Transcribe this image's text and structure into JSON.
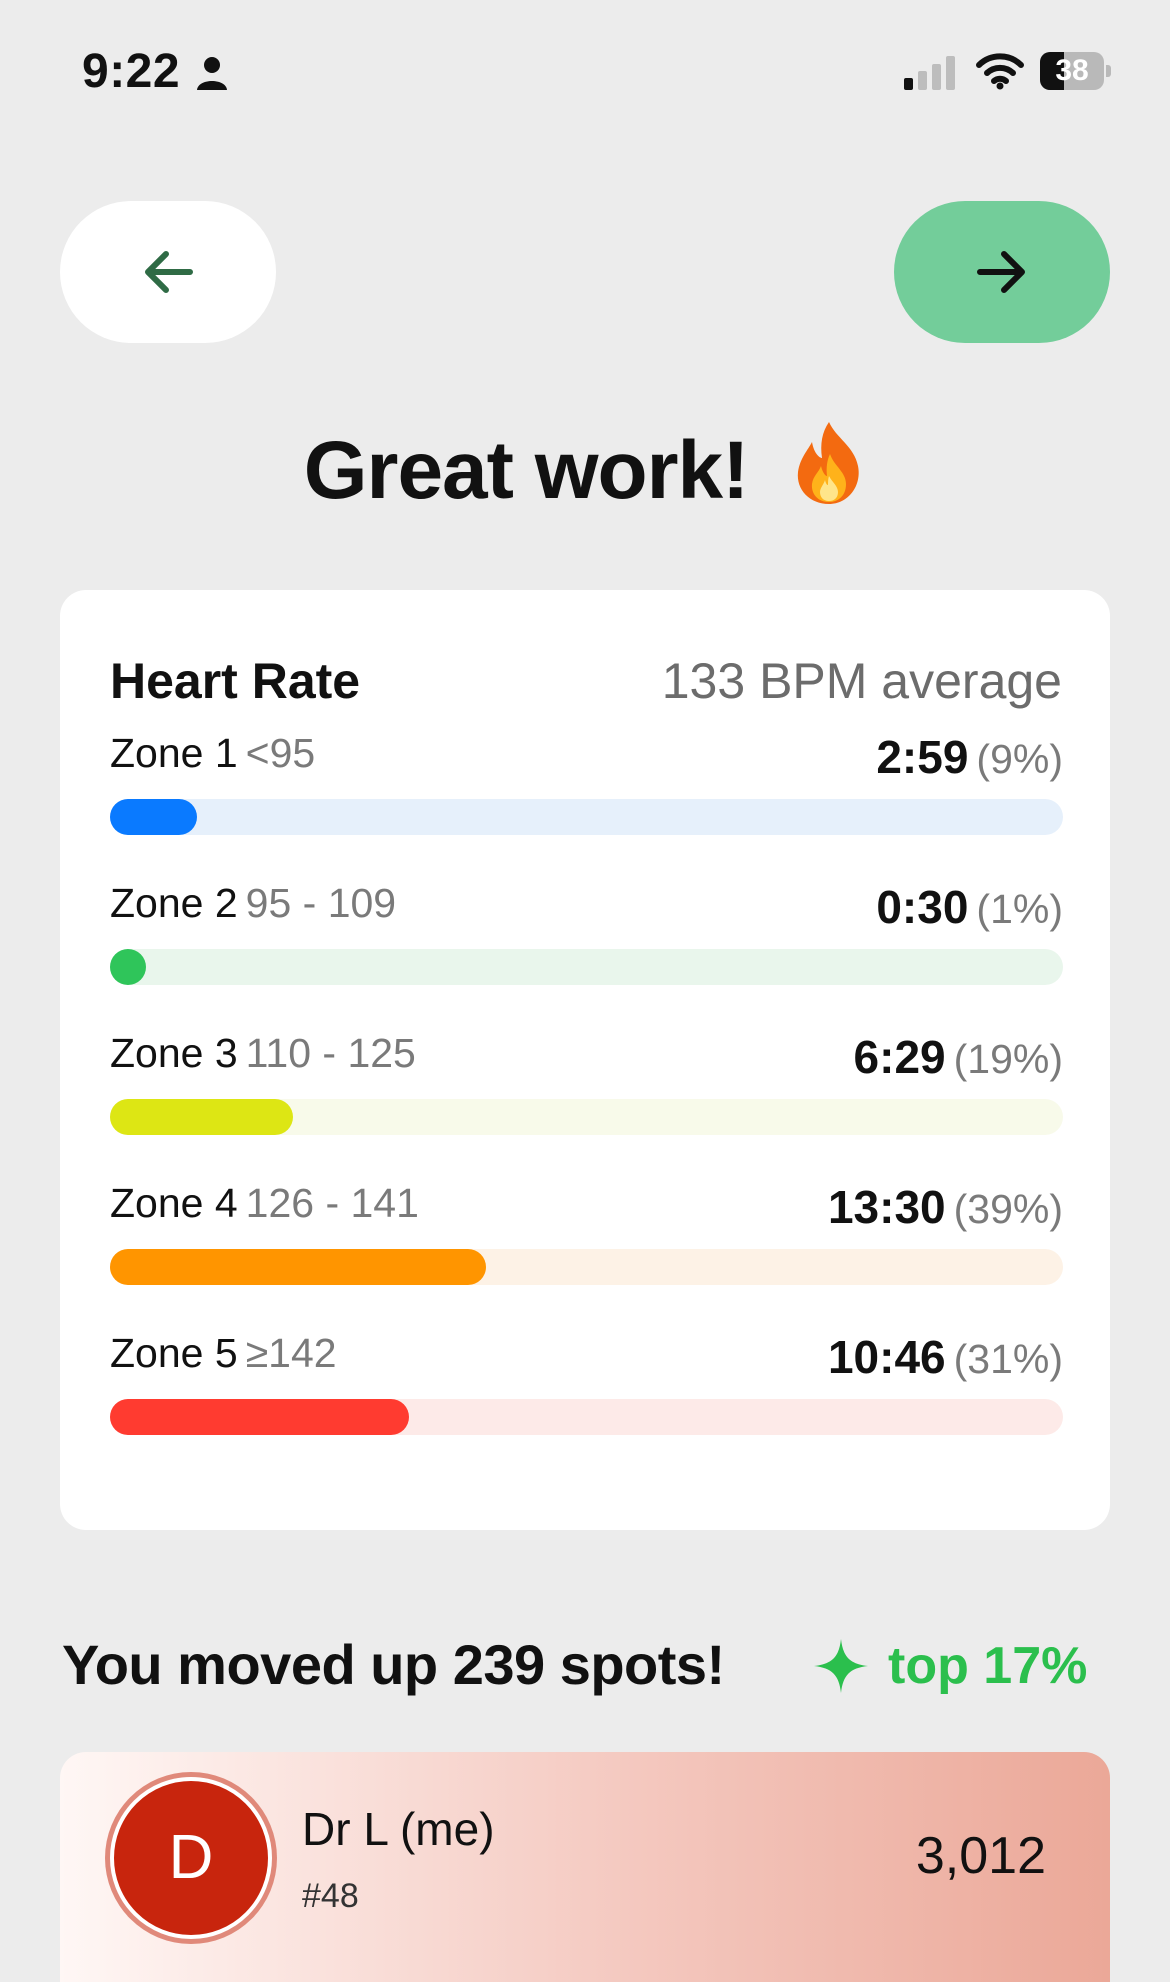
{
  "status_bar": {
    "time": "9:22",
    "battery": "38",
    "icons": [
      "person-icon",
      "signal-icon",
      "wifi-icon",
      "battery-icon"
    ]
  },
  "nav": {
    "back_icon": "arrow-left-icon",
    "next_icon": "arrow-right-icon",
    "back_bg": "#ffffff",
    "next_bg": "#73cd9a"
  },
  "headline": {
    "text": "Great work!",
    "emoji_icon": "fire-icon"
  },
  "heart_rate": {
    "title": "Heart Rate",
    "average": "133 BPM average",
    "zones": [
      {
        "name": "Zone 1",
        "range": "<95",
        "time": "2:59",
        "pct": "(9%)",
        "fraction": 0.09,
        "color": "#0a7aff",
        "track_color": "#e6f0fb"
      },
      {
        "name": "Zone 2",
        "range": "95 - 109",
        "time": "0:30",
        "pct": "(1%)",
        "fraction": 0.01,
        "color": "#2fc55a",
        "track_color": "#e9f6ec"
      },
      {
        "name": "Zone 3",
        "range": "110 - 125",
        "time": "6:29",
        "pct": "(19%)",
        "fraction": 0.19,
        "color": "#dde614",
        "track_color": "#f8faea"
      },
      {
        "name": "Zone 4",
        "range": "126 - 141",
        "time": "13:30",
        "pct": "(39%)",
        "fraction": 0.39,
        "color": "#ff9500",
        "track_color": "#fdf2e6"
      },
      {
        "name": "Zone 5",
        "range": "≥142",
        "time": "10:46",
        "pct": "(31%)",
        "fraction": 0.31,
        "color": "#ff3b30",
        "track_color": "#fdeae8"
      }
    ]
  },
  "rank": {
    "heading": "You moved up 239 spots!",
    "badge_icon": "sparkle-icon",
    "badge": "top 17%",
    "badge_color": "#2bbf4d"
  },
  "leaderboard": {
    "entry": {
      "initial": "D",
      "name": "Dr L (me)",
      "rank": "#48",
      "score": "3,012"
    }
  }
}
